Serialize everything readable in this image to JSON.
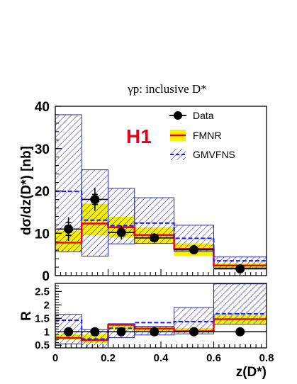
{
  "chart_data": [
    {
      "type": "line",
      "title": "γp:  inclusive D*",
      "experiment_label": "H1",
      "ylabel": "dσ/dz(D*) [nb]",
      "xlabel": "",
      "xlim": [
        0,
        0.8
      ],
      "ylim": [
        0,
        40
      ],
      "yticks": [
        0,
        10,
        20,
        30,
        40
      ],
      "legend": {
        "placement": "top-right",
        "entries": [
          "Data",
          "FMNR",
          "GMVFNS"
        ]
      },
      "bin_edges": [
        0,
        0.1,
        0.2,
        0.3,
        0.45,
        0.6,
        0.8
      ],
      "series": [
        {
          "name": "Data",
          "kind": "points",
          "x": [
            0.05,
            0.15,
            0.25,
            0.375,
            0.525,
            0.7
          ],
          "values": [
            11.0,
            18.0,
            10.2,
            8.9,
            6.1,
            1.6
          ],
          "err_inner": [
            1.5,
            1.2,
            0.8,
            0.6,
            0.4,
            0.2
          ],
          "err_total": [
            2.8,
            2.7,
            1.6,
            1.1,
            0.7,
            0.4
          ],
          "color": "#000000"
        },
        {
          "name": "FMNR",
          "kind": "histogram_band",
          "values": [
            7.8,
            12.3,
            11.4,
            9.6,
            6.3,
            2.4
          ],
          "lower": [
            5.8,
            9.5,
            9.0,
            7.5,
            4.6,
            1.6
          ],
          "upper": [
            10.6,
            17.0,
            13.9,
            11.4,
            7.6,
            2.9
          ],
          "color": "#e8001c",
          "band_color": "#f5f000"
        },
        {
          "name": "GMVFNS",
          "kind": "histogram_band",
          "values": [
            19.9,
            13.1,
            11.8,
            12.4,
            8.8,
            3.5
          ],
          "lower": [
            5.6,
            4.6,
            7.5,
            7.6,
            5.7,
            1.8
          ],
          "upper": [
            38.0,
            25.0,
            20.6,
            18.4,
            11.9,
            4.4
          ],
          "color": "#1a1aff",
          "band_color": "#3a3ab0"
        }
      ]
    },
    {
      "type": "line",
      "ylabel": "R",
      "xlabel": "z(D*)",
      "xlim": [
        0,
        0.8
      ],
      "ylim": [
        0.4,
        2.8
      ],
      "xticks": [
        0,
        0.2,
        0.4,
        0.6,
        0.8
      ],
      "xtick_labels": [
        "0",
        "0.2",
        "0.4",
        "0.6",
        "0.8"
      ],
      "yticks": [
        0.5,
        1,
        1.5,
        2,
        2.5
      ],
      "ytick_labels": [
        "0.5",
        "1",
        "1.5",
        "2",
        "2.5"
      ],
      "reference_line": 1,
      "bin_edges": [
        0,
        0.1,
        0.2,
        0.3,
        0.45,
        0.6,
        0.8
      ],
      "series": [
        {
          "name": "Data",
          "kind": "points",
          "x": [
            0.05,
            0.15,
            0.25,
            0.375,
            0.525,
            0.7
          ],
          "values": [
            1,
            1,
            1,
            1,
            1,
            1
          ],
          "color": "#000000"
        },
        {
          "name": "FMNR",
          "kind": "histogram_band",
          "values": [
            0.77,
            0.69,
            1.26,
            1.12,
            1.02,
            1.47
          ],
          "lower": [
            0.7,
            0.58,
            1.08,
            1.02,
            0.95,
            1.28
          ],
          "upper": [
            0.9,
            0.9,
            1.3,
            1.22,
            1.14,
            1.62
          ],
          "color": "#e8001c",
          "band_color": "#f5f000"
        },
        {
          "name": "GMVFNS",
          "kind": "histogram_band",
          "values": [
            1.43,
            0.73,
            1.13,
            1.34,
            1.38,
            1.67
          ],
          "lower": [
            0.55,
            0.4,
            0.78,
            0.88,
            0.92,
            1.28
          ],
          "upper": [
            1.65,
            1.08,
            1.3,
            1.2,
            1.9,
            2.78
          ],
          "color": "#1a1aff",
          "band_color": "#3a3ab0"
        }
      ]
    }
  ]
}
